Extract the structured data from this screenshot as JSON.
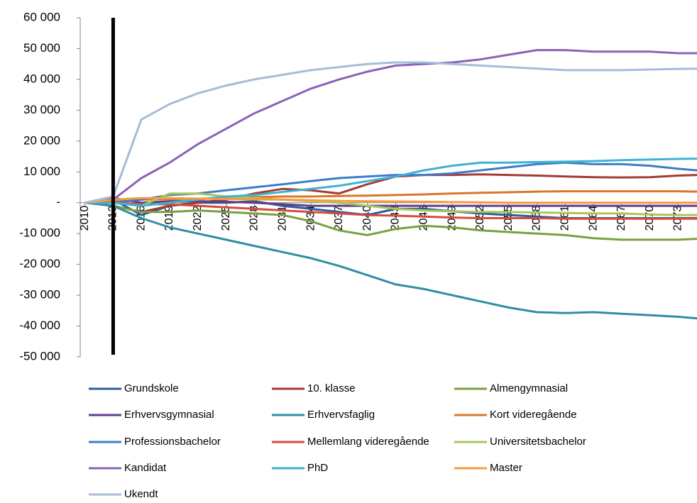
{
  "chart_data": {
    "type": "line",
    "x": [
      2010,
      2013,
      2016,
      2019,
      2022,
      2025,
      2028,
      2031,
      2034,
      2037,
      2040,
      2043,
      2046,
      2049,
      2052,
      2055,
      2058,
      2061,
      2064,
      2067,
      2070,
      2073,
      2075
    ],
    "xlim": [
      2009.5,
      2075
    ],
    "xticks": [
      2010,
      2013,
      2016,
      2019,
      2022,
      2025,
      2028,
      2031,
      2034,
      2037,
      2040,
      2043,
      2046,
      2049,
      2052,
      2055,
      2058,
      2061,
      2064,
      2067,
      2070,
      2073
    ],
    "ylim": [
      -50000,
      60000
    ],
    "yticks": [
      {
        "value": -50000,
        "label": "-50 000"
      },
      {
        "value": -40000,
        "label": "-40 000"
      },
      {
        "value": -30000,
        "label": "-30 000"
      },
      {
        "value": -20000,
        "label": "-20 000"
      },
      {
        "value": -10000,
        "label": "-10 000"
      },
      {
        "value": 0,
        "label": "-"
      },
      {
        "value": 10000,
        "label": "10 000"
      },
      {
        "value": 20000,
        "label": "20 000"
      },
      {
        "value": 30000,
        "label": "30 000"
      },
      {
        "value": 40000,
        "label": "40 000"
      },
      {
        "value": 50000,
        "label": "50 000"
      },
      {
        "value": 60000,
        "label": "60 000"
      }
    ],
    "vline_x": 2013,
    "series": [
      {
        "name": "Grundskole",
        "color": "#2e5b9a",
        "values": [
          0,
          1000,
          -4000,
          -1000,
          0,
          0,
          500,
          -1000,
          -2000,
          -3000,
          -4000,
          -2000,
          -2000,
          -2800,
          -3500,
          -4000,
          -4500,
          -5000,
          -5000,
          -5000,
          -5000,
          -5000,
          -5000
        ]
      },
      {
        "name": "10. klasse",
        "color": "#a33b36",
        "values": [
          0,
          -1000,
          -3000,
          -1000,
          0,
          1000,
          3000,
          4500,
          4000,
          3000,
          6000,
          8500,
          9000,
          9000,
          9200,
          9000,
          8800,
          8500,
          8300,
          8200,
          8300,
          8800,
          9000
        ]
      },
      {
        "name": "Almengymnasial",
        "color": "#7ba03e",
        "values": [
          0,
          -1000,
          -3000,
          -3000,
          -2500,
          -3000,
          -3500,
          -4000,
          -6000,
          -9000,
          -10500,
          -8500,
          -7500,
          -8000,
          -9000,
          -9500,
          -10000,
          -10500,
          -11500,
          -12000,
          -12000,
          -12000,
          -11700
        ]
      },
      {
        "name": "Erhvervsgymnasial",
        "color": "#5f3f8c",
        "values": [
          0,
          1500,
          0,
          500,
          500,
          300,
          0,
          -500,
          -1000,
          -1000,
          -1000,
          -1000,
          -1000,
          -1000,
          -1000,
          -1000,
          -1000,
          -1000,
          -1000,
          -1000,
          -1000,
          -1000,
          -1000
        ]
      },
      {
        "name": "Erhvervsfaglig",
        "color": "#2f8ea3",
        "values": [
          0,
          -1000,
          -5000,
          -8000,
          -10000,
          -12000,
          -14000,
          -16000,
          -18000,
          -20500,
          -23500,
          -26500,
          -28000,
          -30000,
          -32000,
          -34000,
          -35500,
          -35800,
          -35500,
          -36000,
          -36500,
          -37000,
          -37500
        ]
      },
      {
        "name": "Kort videregående",
        "color": "#d9772a",
        "values": [
          0,
          500,
          1000,
          1200,
          1300,
          1500,
          1800,
          2000,
          2000,
          2200,
          2300,
          2500,
          2700,
          3000,
          3200,
          3400,
          3600,
          3700,
          3700,
          3700,
          3700,
          3700,
          3600
        ]
      },
      {
        "name": "Professionsbachelor",
        "color": "#3e7cc9",
        "values": [
          0,
          0,
          1000,
          2500,
          3000,
          4000,
          5000,
          6000,
          7000,
          8000,
          8500,
          9000,
          9000,
          9500,
          10500,
          11500,
          12500,
          13000,
          12500,
          12500,
          12000,
          11000,
          10500
        ]
      },
      {
        "name": "Mellemlang videregående",
        "color": "#d44b40",
        "values": [
          0,
          0,
          -500,
          -500,
          -1000,
          -1500,
          -2000,
          -2500,
          -3000,
          -3500,
          -4000,
          -4200,
          -4500,
          -4800,
          -5000,
          -5000,
          -5000,
          -5200,
          -5200,
          -5200,
          -5200,
          -5200,
          -5200
        ]
      },
      {
        "name": "Universitetsbachelor",
        "color": "#a5c85a",
        "values": [
          0,
          0,
          -1000,
          3000,
          3000,
          2000,
          1500,
          1000,
          500,
          0,
          -1000,
          -2000,
          -2500,
          -2800,
          -3000,
          -3000,
          -3200,
          -3300,
          -3500,
          -3500,
          -3800,
          -4000,
          -4000
        ]
      },
      {
        "name": "Kandidat",
        "color": "#8a63b8",
        "values": [
          0,
          1000,
          8000,
          13000,
          19000,
          24000,
          29000,
          33000,
          37000,
          40000,
          42500,
          44500,
          45000,
          45500,
          46500,
          48000,
          49500,
          49500,
          49000,
          49000,
          49000,
          48500,
          48500
        ]
      },
      {
        "name": "PhD",
        "color": "#3fb2d2",
        "values": [
          0,
          0,
          -1000,
          0,
          1000,
          2000,
          2500,
          3500,
          4500,
          5500,
          7000,
          8500,
          10500,
          12000,
          13000,
          13000,
          13200,
          13300,
          13500,
          13800,
          14000,
          14200,
          14300
        ]
      },
      {
        "name": "Master",
        "color": "#f79b3c",
        "values": [
          0,
          1000,
          1500,
          1500,
          1300,
          1200,
          1100,
          1000,
          800,
          600,
          500,
          400,
          300,
          200,
          100,
          0,
          0,
          0,
          0,
          0,
          0,
          0,
          0
        ]
      },
      {
        "name": "Ukendt",
        "color": "#a8bbd9",
        "values": [
          0,
          2000,
          27000,
          32000,
          35500,
          38000,
          40000,
          41500,
          43000,
          44000,
          45000,
          45500,
          45500,
          45000,
          44500,
          44000,
          43500,
          43000,
          43000,
          43000,
          43200,
          43400,
          43500
        ]
      }
    ]
  }
}
